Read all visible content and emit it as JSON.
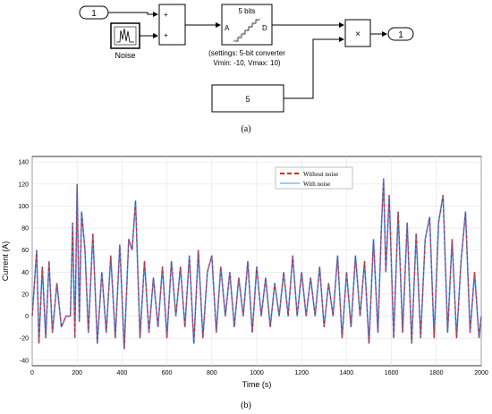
{
  "diagram": {
    "inport_label": "1",
    "noise_label": "Noise",
    "sum_signs": [
      "+",
      "+"
    ],
    "converter": {
      "title": "5 bits",
      "port_in": "A",
      "port_out": "D",
      "settings_line1": "(settings: 5-bit converter",
      "settings_line2": "Vmin: -10, Vmax: 10)"
    },
    "product_symbol": "×",
    "outport_label": "1",
    "constant_value": "5",
    "caption": "(a)"
  },
  "chart_caption": "(b)",
  "colors": {
    "without_noise": "#d62728",
    "with_noise": "#3399ff"
  },
  "chart_data": {
    "type": "line",
    "xlabel": "Time (s)",
    "ylabel": "Current (A)",
    "xlim": [
      0,
      2000
    ],
    "ylim": [
      -45,
      145
    ],
    "xticks": [
      0,
      200,
      400,
      600,
      800,
      1000,
      1200,
      1400,
      1600,
      1800,
      2000
    ],
    "yticks": [
      -40,
      -20,
      0,
      20,
      40,
      60,
      80,
      100,
      120,
      140
    ],
    "grid": true,
    "legend_position": "top-right",
    "series": [
      {
        "name": "Without noise",
        "style": "dashed"
      },
      {
        "name": "With noise",
        "style": "solid"
      }
    ],
    "x": [
      0,
      20,
      30,
      45,
      60,
      75,
      90,
      110,
      130,
      150,
      170,
      180,
      190,
      200,
      210,
      220,
      235,
      250,
      270,
      290,
      310,
      330,
      350,
      370,
      390,
      410,
      430,
      445,
      460,
      480,
      500,
      520,
      540,
      560,
      580,
      600,
      620,
      640,
      660,
      680,
      700,
      720,
      740,
      760,
      780,
      800,
      820,
      840,
      860,
      880,
      900,
      920,
      940,
      960,
      980,
      1000,
      1020,
      1040,
      1060,
      1080,
      1100,
      1120,
      1140,
      1160,
      1180,
      1200,
      1220,
      1240,
      1260,
      1280,
      1300,
      1320,
      1340,
      1360,
      1380,
      1400,
      1420,
      1440,
      1460,
      1480,
      1500,
      1520,
      1540,
      1555,
      1565,
      1575,
      1590,
      1610,
      1630,
      1650,
      1670,
      1690,
      1710,
      1730,
      1750,
      1770,
      1790,
      1810,
      1830,
      1850,
      1870,
      1890,
      1910,
      1930,
      1950,
      1970,
      1990,
      2000
    ],
    "values": [
      0,
      60,
      -25,
      45,
      -20,
      50,
      -15,
      30,
      -10,
      0,
      0,
      85,
      -20,
      120,
      -5,
      95,
      60,
      -15,
      75,
      -25,
      40,
      -15,
      55,
      -20,
      65,
      -30,
      70,
      60,
      105,
      -20,
      50,
      -15,
      35,
      -10,
      45,
      -20,
      50,
      0,
      45,
      -10,
      55,
      -25,
      60,
      -20,
      40,
      55,
      -15,
      45,
      0,
      40,
      -10,
      35,
      0,
      50,
      -15,
      45,
      0,
      35,
      -10,
      30,
      0,
      40,
      0,
      55,
      0,
      40,
      0,
      35,
      0,
      45,
      -10,
      30,
      0,
      55,
      -20,
      40,
      -10,
      55,
      0,
      50,
      -25,
      70,
      -15,
      80,
      125,
      40,
      110,
      -20,
      95,
      -15,
      85,
      -25,
      75,
      -20,
      70,
      90,
      -20,
      85,
      110,
      -15,
      70,
      -20,
      50,
      95,
      -15,
      40,
      -20,
      0
    ]
  }
}
